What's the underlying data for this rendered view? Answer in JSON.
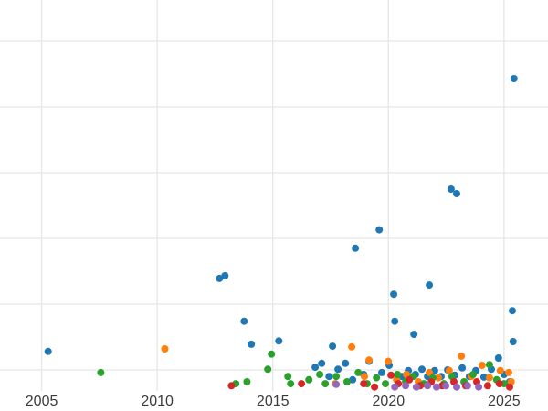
{
  "chart": {
    "background": "#ffffff",
    "grid_color": "#e6e6e6",
    "tick_label_color": "#3b3b3b",
    "tick_font_size": 16
  },
  "chart_data": {
    "type": "scatter",
    "title": "",
    "xlabel": "",
    "ylabel": "",
    "grid": true,
    "legend": "none",
    "x_ticks": [
      2005,
      2010,
      2015,
      2020,
      2025
    ],
    "x_tick_labels": [
      "2005",
      "2010",
      "2015",
      "2020",
      "2025"
    ],
    "xlim": [
      2003.2,
      2026.9
    ],
    "ylim": [
      0.375,
      6.625
    ],
    "y_gridlines": [
      1,
      2,
      3,
      4,
      5,
      6
    ],
    "y_tick_labels_visible": false,
    "y_units": "gridline units (y-axis tick labels not visible in screenshot)",
    "marker_size_px": 4,
    "series": [
      {
        "name": "series-blue",
        "color": "#1f77b4",
        "points": [
          [
            2005.28,
            1.28
          ],
          [
            2012.69,
            2.39
          ],
          [
            2012.93,
            2.43
          ],
          [
            2013.76,
            1.74
          ],
          [
            2014.07,
            1.39
          ],
          [
            2015.26,
            1.44
          ],
          [
            2016.83,
            1.04
          ],
          [
            2017.11,
            1.1
          ],
          [
            2017.43,
            0.9
          ],
          [
            2017.58,
            1.36
          ],
          [
            2017.82,
            1.01
          ],
          [
            2018.14,
            1.1
          ],
          [
            2018.45,
            0.85
          ],
          [
            2018.57,
            2.85
          ],
          [
            2018.93,
            0.93
          ],
          [
            2019.16,
            1.13
          ],
          [
            2019.6,
            3.13
          ],
          [
            2019.71,
            0.96
          ],
          [
            2020.03,
            1.07
          ],
          [
            2020.23,
            2.15
          ],
          [
            2020.27,
            1.74
          ],
          [
            2020.58,
            0.9
          ],
          [
            2020.86,
            0.99
          ],
          [
            2021.1,
            1.54
          ],
          [
            2021.17,
            0.93
          ],
          [
            2021.45,
            1.01
          ],
          [
            2021.69,
            0.9
          ],
          [
            2021.77,
            2.29
          ],
          [
            2022.0,
            0.99
          ],
          [
            2022.28,
            0.9
          ],
          [
            2022.56,
            1.0
          ],
          [
            2022.71,
            3.75
          ],
          [
            2022.87,
            0.92
          ],
          [
            2022.95,
            3.68
          ],
          [
            2023.19,
            1.03
          ],
          [
            2023.5,
            0.9
          ],
          [
            2023.78,
            0.99
          ],
          [
            2024.13,
            0.89
          ],
          [
            2024.45,
            1.01
          ],
          [
            2024.76,
            1.18
          ],
          [
            2025.0,
            0.93
          ],
          [
            2025.24,
            0.82
          ],
          [
            2025.36,
            1.9
          ],
          [
            2025.39,
            1.43
          ],
          [
            2025.43,
            5.43
          ]
        ]
      },
      {
        "name": "series-orange",
        "color": "#ff7f0e",
        "points": [
          [
            2010.33,
            1.32
          ],
          [
            2017.7,
            0.79
          ],
          [
            2018.41,
            1.35
          ],
          [
            2018.96,
            0.9
          ],
          [
            2019.16,
            1.15
          ],
          [
            2019.99,
            1.13
          ],
          [
            2020.35,
            0.85
          ],
          [
            2020.78,
            0.93
          ],
          [
            2021.29,
            0.82
          ],
          [
            2021.77,
            0.96
          ],
          [
            2022.16,
            0.88
          ],
          [
            2022.63,
            0.99
          ],
          [
            2023.15,
            1.21
          ],
          [
            2023.58,
            0.9
          ],
          [
            2024.05,
            1.07
          ],
          [
            2024.37,
            0.88
          ],
          [
            2024.84,
            0.99
          ],
          [
            2025.2,
            0.96
          ],
          [
            2025.31,
            0.82
          ]
        ]
      },
      {
        "name": "series-green",
        "color": "#2ca02c",
        "points": [
          [
            2007.56,
            0.96
          ],
          [
            2013.4,
            0.79
          ],
          [
            2013.88,
            0.82
          ],
          [
            2014.78,
            1.01
          ],
          [
            2014.94,
            1.24
          ],
          [
            2015.65,
            0.9
          ],
          [
            2015.77,
            0.79
          ],
          [
            2016.56,
            0.85
          ],
          [
            2017.03,
            0.93
          ],
          [
            2017.27,
            0.79
          ],
          [
            2017.74,
            0.9
          ],
          [
            2018.21,
            0.82
          ],
          [
            2018.69,
            0.96
          ],
          [
            2019.08,
            0.79
          ],
          [
            2019.48,
            0.88
          ],
          [
            2019.87,
            0.79
          ],
          [
            2020.39,
            0.93
          ],
          [
            2020.74,
            0.82
          ],
          [
            2021.06,
            0.9
          ],
          [
            2021.53,
            0.79
          ],
          [
            2021.92,
            0.88
          ],
          [
            2022.4,
            0.79
          ],
          [
            2022.75,
            0.9
          ],
          [
            2023.27,
            0.82
          ],
          [
            2023.66,
            0.93
          ],
          [
            2024.37,
            1.08
          ],
          [
            2024.68,
            0.85
          ],
          [
            2025.0,
            0.79
          ]
        ]
      },
      {
        "name": "series-red",
        "color": "#d62728",
        "points": [
          [
            2013.21,
            0.76
          ],
          [
            2016.24,
            0.79
          ],
          [
            2018.93,
            0.79
          ],
          [
            2019.4,
            0.74
          ],
          [
            2020.11,
            0.92
          ],
          [
            2020.43,
            0.79
          ],
          [
            2020.9,
            0.85
          ],
          [
            2021.37,
            0.76
          ],
          [
            2021.85,
            0.82
          ],
          [
            2022.32,
            0.76
          ],
          [
            2022.83,
            0.82
          ],
          [
            2023.34,
            0.76
          ],
          [
            2023.82,
            0.82
          ],
          [
            2024.29,
            0.76
          ],
          [
            2024.8,
            0.79
          ],
          [
            2025.24,
            0.74
          ]
        ]
      },
      {
        "name": "series-purple",
        "color": "#9467bd",
        "points": [
          [
            2017.74,
            0.78
          ],
          [
            2020.27,
            0.74
          ],
          [
            2020.74,
            0.76
          ],
          [
            2021.21,
            0.74
          ],
          [
            2021.69,
            0.76
          ],
          [
            2022.08,
            0.74
          ],
          [
            2022.48,
            0.76
          ],
          [
            2022.95,
            0.74
          ],
          [
            2023.42,
            0.76
          ],
          [
            2023.9,
            0.74
          ]
        ]
      }
    ]
  }
}
